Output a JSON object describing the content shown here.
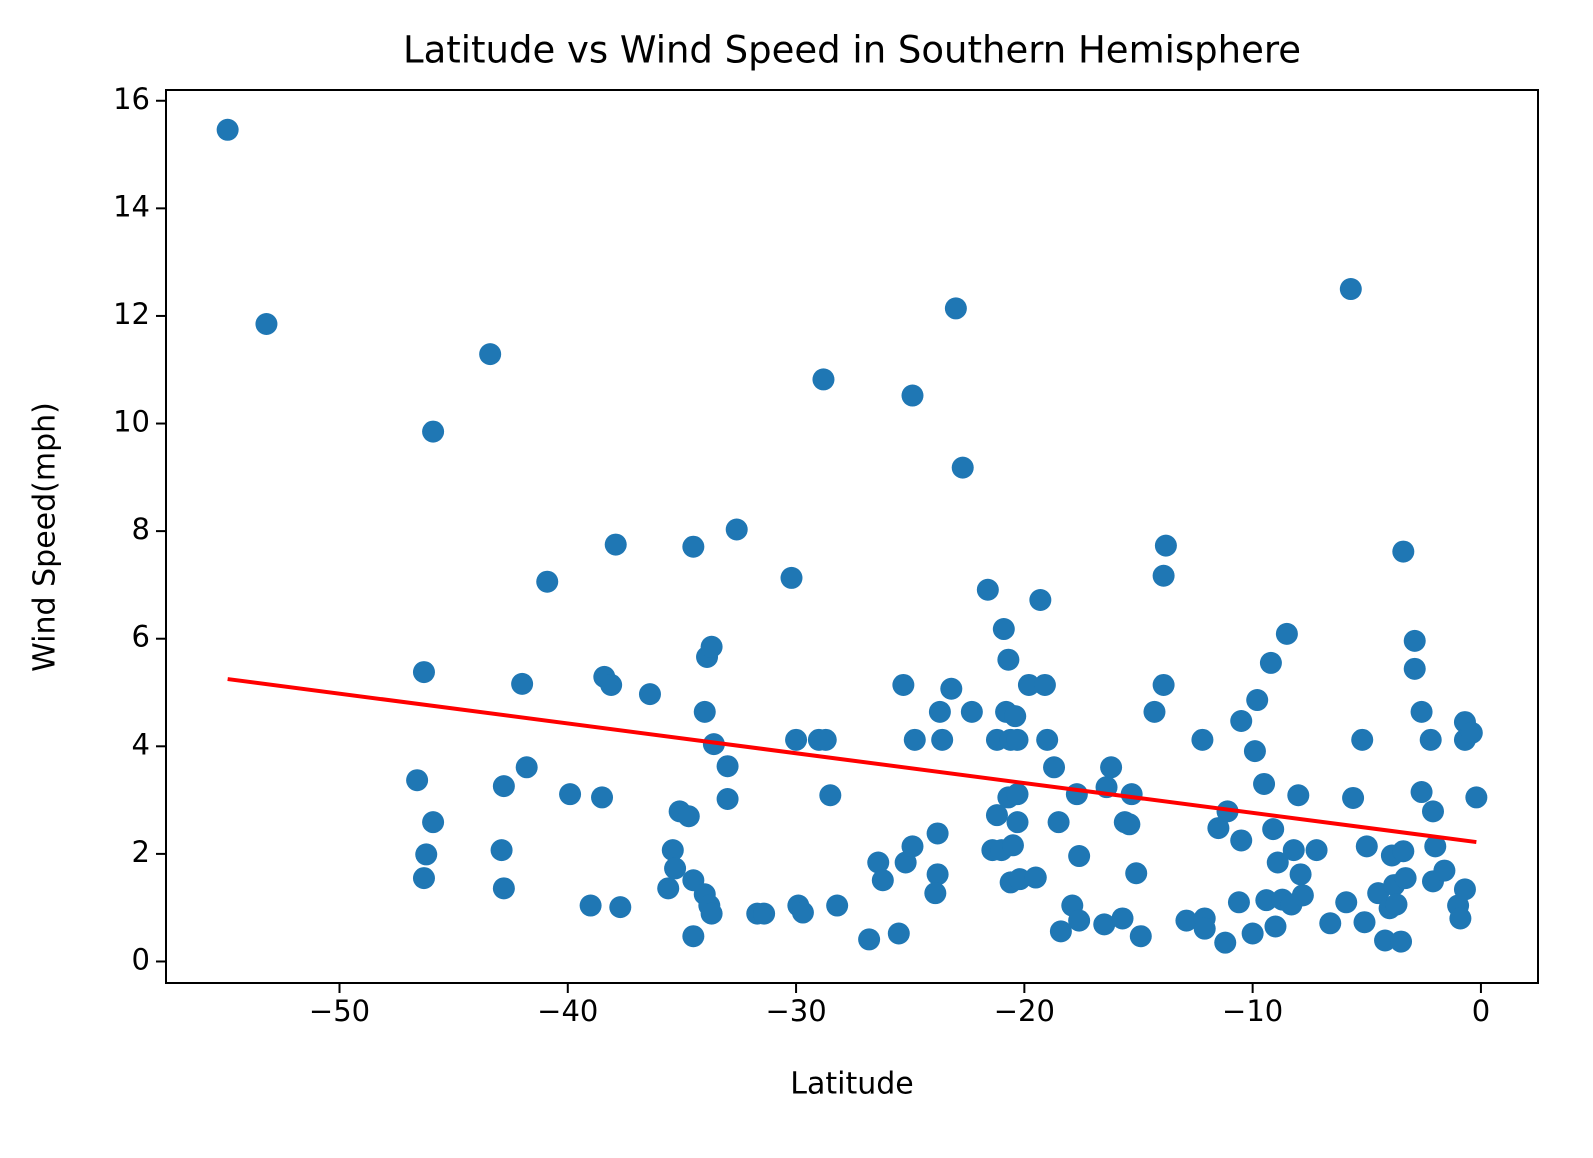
{
  "chart_data": {
    "type": "scatter",
    "title": "Latitude vs Wind Speed in Southern Hemisphere",
    "xlabel": "Latitude",
    "ylabel": "Wind Speed(mph)",
    "color": "#1f77b4",
    "x": [
      -54.9,
      -53.2,
      -43.4,
      -45.9,
      -46.6,
      -46.3,
      -45.9,
      -46.2,
      -46.3,
      -42.8,
      -42.9,
      -42.8,
      -42.0,
      -41.8,
      -40.9,
      -39.9,
      -39.0,
      -38.5,
      -38.4,
      -38.1,
      -37.9,
      -37.7,
      -36.4,
      -35.6,
      -35.4,
      -35.3,
      -35.1,
      -34.7,
      -34.5,
      -34.5,
      -34.5,
      -34.0,
      -34.0,
      -33.9,
      -33.7,
      -33.8,
      -33.7,
      -33.6,
      -33.0,
      -33.0,
      -32.6,
      -31.7,
      -31.4,
      -30.2,
      -30.0,
      -29.9,
      -29.7,
      -29.0,
      -28.7,
      -28.8,
      -28.5,
      -28.2,
      -26.8,
      -26.4,
      -26.2,
      -25.5,
      -25.3,
      -25.2,
      -24.9,
      -24.9,
      -24.8,
      -23.8,
      -23.9,
      -23.8,
      -23.7,
      -23.6,
      -23.2,
      -23.0,
      -22.7,
      -22.3,
      -21.6,
      -21.4,
      -21.2,
      -21.2,
      -21.0,
      -20.9,
      -20.8,
      -20.7,
      -20.7,
      -20.6,
      -20.6,
      -20.5,
      -20.4,
      -20.3,
      -20.3,
      -20.3,
      -20.2,
      -19.8,
      -19.5,
      -19.3,
      -19.1,
      -19.0,
      -18.7,
      -18.5,
      -18.4,
      -17.9,
      -17.7,
      -17.6,
      -17.6,
      -16.5,
      -16.4,
      -16.2,
      -15.7,
      -15.6,
      -15.4,
      -15.3,
      -15.1,
      -14.9,
      -14.3,
      -13.9,
      -13.8,
      -13.9,
      -12.9,
      -12.2,
      -12.1,
      -12.1,
      -11.5,
      -11.2,
      -11.1,
      -10.6,
      -10.5,
      -10.5,
      -10.0,
      -9.9,
      -9.8,
      -9.5,
      -9.4,
      -9.2,
      -9.1,
      -9.0,
      -8.9,
      -8.7,
      -8.5,
      -8.3,
      -8.2,
      -8.0,
      -7.9,
      -7.8,
      -7.2,
      -6.6,
      -5.9,
      -5.7,
      -5.6,
      -5.2,
      -5.1,
      -5.0,
      -4.5,
      -4.2,
      -4.0,
      -3.9,
      -3.8,
      -3.7,
      -3.5,
      -3.4,
      -3.4,
      -3.3,
      -2.9,
      -2.9,
      -2.6,
      -2.6,
      -2.2,
      -2.1,
      -2.1,
      -2.0,
      -1.6,
      -1.0,
      -0.9,
      -0.7,
      -0.7,
      -0.7,
      -0.4,
      -0.2
    ],
    "values": [
      15.46,
      11.85,
      11.29,
      9.85,
      3.37,
      5.38,
      2.59,
      1.99,
      1.55,
      3.26,
      2.07,
      1.36,
      5.16,
      3.61,
      7.06,
      3.11,
      1.04,
      3.05,
      5.29,
      5.14,
      7.75,
      1.01,
      4.97,
      1.36,
      2.07,
      1.73,
      2.79,
      2.7,
      1.51,
      7.71,
      0.47,
      1.25,
      4.64,
      5.66,
      5.85,
      1.04,
      0.89,
      4.04,
      3.63,
      3.02,
      8.03,
      0.89,
      0.89,
      7.13,
      4.12,
      1.04,
      0.91,
      4.12,
      4.12,
      10.82,
      3.09,
      1.04,
      0.41,
      1.84,
      1.51,
      0.52,
      5.14,
      1.84,
      2.14,
      10.52,
      4.12,
      1.62,
      1.27,
      2.38,
      4.64,
      4.12,
      5.07,
      12.14,
      9.18,
      4.64,
      6.91,
      2.07,
      4.12,
      2.72,
      2.07,
      6.18,
      4.64,
      5.61,
      3.05,
      1.47,
      4.12,
      2.16,
      4.56,
      4.12,
      3.11,
      2.59,
      1.53,
      5.14,
      1.56,
      6.72,
      5.14,
      4.12,
      3.61,
      2.59,
      0.56,
      1.04,
      3.11,
      1.96,
      0.76,
      0.69,
      3.24,
      3.61,
      0.8,
      2.59,
      2.55,
      3.11,
      1.64,
      0.47,
      4.64,
      7.17,
      7.73,
      5.14,
      0.76,
      4.12,
      0.8,
      0.61,
      2.48,
      0.35,
      2.79,
      1.1,
      4.47,
      2.25,
      0.52,
      3.91,
      4.86,
      3.3,
      1.14,
      5.55,
      2.46,
      0.65,
      1.84,
      1.15,
      6.09,
      1.06,
      2.07,
      3.09,
      1.62,
      1.23,
      2.07,
      0.71,
      1.1,
      12.5,
      3.04,
      4.12,
      0.73,
      2.14,
      1.27,
      0.39,
      0.99,
      1.97,
      1.42,
      1.06,
      0.37,
      2.05,
      7.62,
      1.55,
      5.44,
      5.96,
      3.15,
      4.64,
      4.12,
      2.79,
      1.49,
      2.14,
      1.69,
      1.04,
      0.8,
      1.34,
      4.45,
      4.12,
      4.25,
      3.05
    ],
    "fit": {
      "x": [
        -54.9,
        -0.2
      ],
      "values": [
        5.25,
        2.22
      ],
      "color": "#ff0000"
    },
    "xlim": [
      -57.6,
      2.5
    ],
    "ylim": [
      -0.4,
      16.2
    ],
    "xticks": [
      {
        "value": -50,
        "label": "−50"
      },
      {
        "value": -40,
        "label": "−40"
      },
      {
        "value": -30,
        "label": "−30"
      },
      {
        "value": -20,
        "label": "−20"
      },
      {
        "value": -10,
        "label": "−10"
      },
      0
    ],
    "yticks": [
      0,
      2,
      4,
      6,
      8,
      10,
      12,
      14,
      16
    ]
  }
}
